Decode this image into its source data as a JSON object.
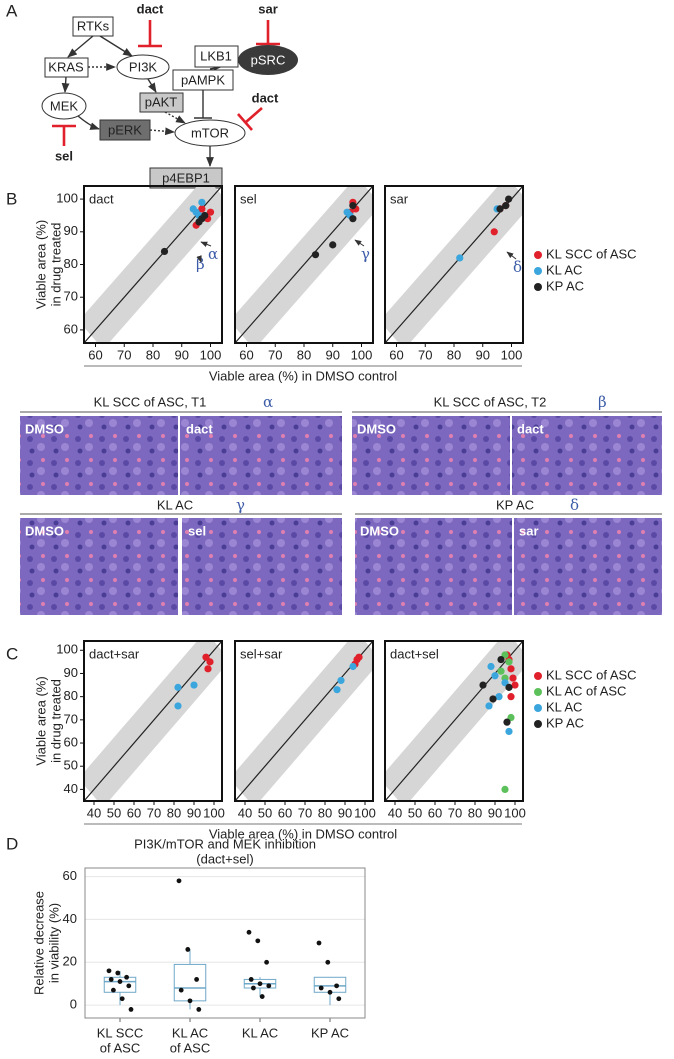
{
  "panel_a": {
    "label": "A",
    "nodes": [
      "RTKs",
      "KRAS",
      "PI3K",
      "MEK",
      "pAKT",
      "pERK",
      "mTOR",
      "p4EBP1",
      "LKB1",
      "pAMPK",
      "pSRC"
    ],
    "drugs": [
      "dact",
      "sar",
      "dact",
      "sel"
    ]
  },
  "histology": {
    "panels": [
      {
        "title": "KL  SCC of ASC, T1",
        "tag": "α",
        "images": [
          "DMSO",
          "dact"
        ]
      },
      {
        "title": "KL  SCC of ASC, T2",
        "tag": "β",
        "images": [
          "DMSO",
          "dact"
        ]
      },
      {
        "title": "KL  AC",
        "tag": "γ",
        "images": [
          "DMSO",
          "sel"
        ]
      },
      {
        "title": "KP  AC",
        "tag": "δ",
        "images": [
          "DMSO",
          "sar"
        ]
      }
    ]
  },
  "chart_data": [
    {
      "type": "scatter",
      "panel_label": "B",
      "xlabel": "Viable area (%) in DMSO control",
      "ylabel": [
        "Viable area (%)",
        "in drug treated"
      ],
      "xlim": [
        56,
        104
      ],
      "ylim": [
        56,
        104
      ],
      "xticks": [
        60,
        70,
        80,
        90,
        100
      ],
      "yticks": [
        60,
        70,
        80,
        90,
        100
      ],
      "annotation_color": "#3c5ca8",
      "legend": [
        {
          "name": "KL SCC of ASC",
          "color": "#e0202a"
        },
        {
          "name": "KL AC",
          "color": "#3aa6dd"
        },
        {
          "name": "KP AC",
          "color": "#222222"
        }
      ],
      "subplots": [
        {
          "title": "dact",
          "annotations": [
            "β",
            "α"
          ],
          "series": [
            {
              "color": "#e0202a",
              "x": [
                97,
                99,
                100,
                95
              ],
              "values": [
                97,
                94,
                96,
                92
              ]
            },
            {
              "color": "#3aa6dd",
              "x": [
                97,
                94,
                96,
                95
              ],
              "values": [
                99,
                97,
                95,
                96
              ]
            },
            {
              "color": "#222222",
              "x": [
                84,
                96,
                97,
                98
              ],
              "values": [
                84,
                93,
                94,
                95
              ]
            }
          ]
        },
        {
          "title": "sel",
          "annotations": [
            "γ"
          ],
          "series": [
            {
              "color": "#e0202a",
              "x": [
                97,
                98,
                96
              ],
              "values": [
                99,
                97,
                96
              ]
            },
            {
              "color": "#3aa6dd",
              "x": [
                96,
                95
              ],
              "values": [
                95,
                96
              ]
            },
            {
              "color": "#222222",
              "x": [
                84,
                90,
                97,
                97
              ],
              "values": [
                83,
                86,
                94,
                98
              ]
            }
          ]
        },
        {
          "title": "sar",
          "annotations": [
            "δ"
          ],
          "series": [
            {
              "color": "#e0202a",
              "x": [
                94,
                96,
                98
              ],
              "values": [
                90,
                97,
                98
              ]
            },
            {
              "color": "#3aa6dd",
              "x": [
                82,
                95
              ],
              "values": [
                82,
                97
              ]
            },
            {
              "color": "#222222",
              "x": [
                96,
                98,
                99
              ],
              "values": [
                97,
                98,
                100
              ]
            }
          ]
        }
      ]
    },
    {
      "type": "scatter",
      "panel_label": "C",
      "xlabel": "Viable area (%) in DMSO control",
      "ylabel": [
        "Viable area (%)",
        "in drug treated"
      ],
      "xlim": [
        35,
        104
      ],
      "ylim": [
        35,
        104
      ],
      "xticks": [
        40,
        50,
        60,
        70,
        80,
        90,
        100
      ],
      "yticks": [
        40,
        50,
        60,
        70,
        80,
        90,
        100
      ],
      "legend": [
        {
          "name": "KL SCC of ASC",
          "color": "#e0202a"
        },
        {
          "name": "KL AC of ASC",
          "color": "#5cc15a"
        },
        {
          "name": "KL AC",
          "color": "#3aa6dd"
        },
        {
          "name": "KP AC",
          "color": "#222222"
        }
      ],
      "subplots": [
        {
          "title": "dact+sar",
          "annotations": [],
          "series": [
            {
              "color": "#e0202a",
              "x": [
                96,
                98,
                97
              ],
              "values": [
                97,
                95,
                92
              ]
            },
            {
              "color": "#3aa6dd",
              "x": [
                82,
                90,
                82
              ],
              "values": [
                84,
                85,
                76
              ]
            }
          ]
        },
        {
          "title": "sel+sar",
          "annotations": [],
          "series": [
            {
              "color": "#e0202a",
              "x": [
                96,
                97,
                95
              ],
              "values": [
                96,
                97,
                94
              ]
            },
            {
              "color": "#3aa6dd",
              "x": [
                88,
                86,
                94
              ],
              "values": [
                87,
                83,
                93
              ]
            }
          ]
        },
        {
          "title": "dact+sel",
          "annotations": [],
          "series": [
            {
              "color": "#e0202a",
              "x": [
                96,
                97,
                98,
                99,
                100,
                98
              ],
              "values": [
                98,
                96,
                92,
                88,
                85,
                80
              ]
            },
            {
              "color": "#5cc15a",
              "x": [
                95,
                97,
                93,
                95,
                98,
                95
              ],
              "values": [
                98,
                95,
                91,
                88,
                71,
                40
              ]
            },
            {
              "color": "#3aa6dd",
              "x": [
                88,
                90,
                95,
                87,
                97,
                92
              ],
              "values": [
                93,
                89,
                86,
                76,
                65,
                80
              ]
            },
            {
              "color": "#222222",
              "x": [
                84,
                89,
                96,
                97,
                93
              ],
              "values": [
                85,
                79,
                69,
                84,
                96
              ]
            }
          ]
        }
      ]
    },
    {
      "type": "box",
      "panel_label": "D",
      "title": [
        "PI3K/mTOR and MEK inhibition",
        "(dact+sel)"
      ],
      "ylabel": [
        "Relative decrease",
        "in viability (%)"
      ],
      "categories": [
        [
          "KL SCC",
          "of ASC"
        ],
        [
          "KL AC",
          "of ASC"
        ],
        [
          "KL AC"
        ],
        [
          "KP AC"
        ]
      ],
      "ylim": [
        -6,
        64
      ],
      "yticks": [
        0,
        20,
        40,
        60
      ],
      "grid": true,
      "color": "#6fa8c8",
      "boxes": [
        {
          "whislo": 0,
          "q1": 6,
          "med": 11,
          "q3": 13,
          "whishi": 16,
          "points": [
            16,
            15,
            13,
            12,
            11,
            9,
            7,
            3,
            -2
          ]
        },
        {
          "whislo": -2,
          "q1": 2,
          "med": 8,
          "q3": 19,
          "whishi": 26,
          "points": [
            58,
            26,
            12,
            7,
            2,
            -2
          ]
        },
        {
          "whislo": 4,
          "q1": 8,
          "med": 10,
          "q3": 12,
          "whishi": 13,
          "points": [
            34,
            30,
            20,
            12,
            10,
            9,
            8,
            4
          ]
        },
        {
          "whislo": 0,
          "q1": 6,
          "med": 9,
          "q3": 13,
          "whishi": 13,
          "points": [
            29,
            20,
            9,
            8,
            6,
            3
          ]
        }
      ]
    }
  ]
}
